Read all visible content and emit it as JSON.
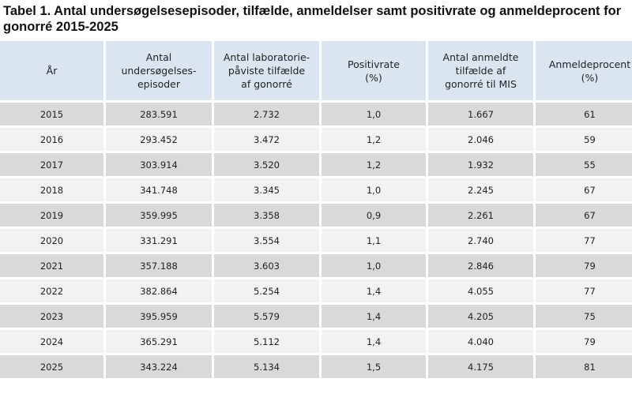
{
  "title": "Tabel 1. Antal undersøgelsesepisoder, tilfælde, anmeldelser samt positivrate og anmeldeprocent for gonorré 2015-2025",
  "headers": [
    "År",
    "Antal\nundersøgelses-\nepisoder",
    "Antal laboratorie-\npåviste tilfælde\naf gonorré",
    "Positivrate\n(%)",
    "Antal anmeldte\ntilfælde af\ngonorré til MIS",
    "Anmeldeprocent\n(%)"
  ],
  "rows": [
    [
      "2015",
      "283.591",
      "2.732",
      "1,0",
      "1.667",
      "61"
    ],
    [
      "2016",
      "293.452",
      "3.472",
      "1,2",
      "2.046",
      "59"
    ],
    [
      "2017",
      "303.914",
      "3.520",
      "1,2",
      "1.932",
      "55"
    ],
    [
      "2018",
      "341.748",
      "3.345",
      "1,0",
      "2.245",
      "67"
    ],
    [
      "2019",
      "359.995",
      "3.358",
      "0,9",
      "2.261",
      "67"
    ],
    [
      "2020",
      "331.291",
      "3.554",
      "1,1",
      "2.740",
      "77"
    ],
    [
      "2021",
      "357.188",
      "3.603",
      "1,0",
      "2.846",
      "79"
    ],
    [
      "2022",
      "382.864",
      "5.254",
      "1,4",
      "4.055",
      "77"
    ],
    [
      "2023",
      "395.959",
      "5.579",
      "1,4",
      "4.205",
      "75"
    ],
    [
      "2024",
      "365.291",
      "5.112",
      "1,4",
      "4.040",
      "79"
    ],
    [
      "2025",
      "343.224",
      "5.134",
      "1,5",
      "4.175",
      "81"
    ]
  ]
}
